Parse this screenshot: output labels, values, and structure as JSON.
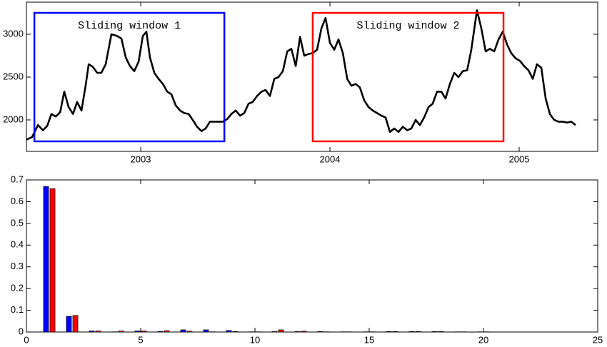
{
  "chart_data": [
    {
      "type": "line",
      "color": "#000000",
      "x": [
        2002.396,
        2002.426,
        2002.457,
        2002.483,
        2002.506,
        2002.528,
        2002.551,
        2002.574,
        2002.596,
        2002.619,
        2002.642,
        2002.664,
        2002.687,
        2002.709,
        2002.725,
        2002.747,
        2002.77,
        2002.792,
        2002.815,
        2002.845,
        2002.875,
        2002.898,
        2002.921,
        2002.943,
        2002.966,
        2002.989,
        2003.011,
        2003.03,
        2003.049,
        2003.072,
        2003.094,
        2003.117,
        2003.14,
        2003.162,
        2003.185,
        2003.208,
        2003.23,
        2003.253,
        2003.275,
        2003.298,
        2003.321,
        2003.343,
        2003.366,
        2003.389,
        2003.411,
        2003.434,
        2003.457,
        2003.479,
        2003.502,
        2003.525,
        2003.547,
        2003.57,
        2003.592,
        2003.615,
        2003.638,
        2003.66,
        2003.683,
        2003.706,
        2003.728,
        2003.751,
        2003.774,
        2003.796,
        2003.819,
        2003.842,
        2003.864,
        2003.887,
        2003.909,
        2003.932,
        2003.955,
        2003.977,
        2004.0,
        2004.023,
        2004.045,
        2004.068,
        2004.091,
        2004.113,
        2004.136,
        2004.158,
        2004.181,
        2004.204,
        2004.226,
        2004.249,
        2004.272,
        2004.294,
        2004.317,
        2004.34,
        2004.362,
        2004.385,
        2004.408,
        2004.43,
        2004.453,
        2004.475,
        2004.498,
        2004.521,
        2004.543,
        2004.566,
        2004.589,
        2004.611,
        2004.634,
        2004.657,
        2004.679,
        2004.702,
        2004.725,
        2004.747,
        2004.777,
        2004.8,
        2004.823,
        2004.845,
        2004.868,
        2004.891,
        2004.913,
        2004.936,
        2004.958,
        2004.981,
        2005.004,
        2005.026,
        2005.049,
        2005.072,
        2005.094,
        2005.117,
        2005.14,
        2005.162,
        2005.185,
        2005.208,
        2005.23,
        2005.253,
        2005.275,
        2005.298
      ],
      "values": [
        1770,
        1800,
        1940,
        1880,
        1930,
        2070,
        2040,
        2090,
        2330,
        2150,
        2070,
        2210,
        2110,
        2400,
        2650,
        2620,
        2550,
        2550,
        2650,
        3000,
        2980,
        2950,
        2730,
        2630,
        2570,
        2680,
        2980,
        3030,
        2730,
        2550,
        2480,
        2420,
        2330,
        2300,
        2170,
        2110,
        2080,
        2070,
        2000,
        1920,
        1870,
        1900,
        1980,
        1980,
        1980,
        1980,
        2010,
        2070,
        2110,
        2050,
        2080,
        2190,
        2210,
        2280,
        2330,
        2350,
        2280,
        2480,
        2500,
        2570,
        2800,
        2830,
        2630,
        2970,
        2750,
        2770,
        2780,
        2820,
        3070,
        3190,
        2900,
        2820,
        2940,
        2780,
        2480,
        2400,
        2420,
        2380,
        2230,
        2150,
        2110,
        2080,
        2050,
        2030,
        1860,
        1900,
        1860,
        1920,
        1880,
        1900,
        2000,
        1940,
        2030,
        2150,
        2190,
        2330,
        2330,
        2250,
        2420,
        2550,
        2500,
        2570,
        2580,
        2820,
        3280,
        3070,
        2800,
        2830,
        2800,
        2940,
        3030,
        2880,
        2780,
        2720,
        2690,
        2630,
        2580,
        2480,
        2650,
        2610,
        2250,
        2070,
        2000,
        1980,
        1980,
        1970,
        1980,
        1940
      ],
      "xlim": [
        2002.396,
        2005.415
      ],
      "ylim": [
        1633,
        3375
      ],
      "xticks": [
        2003,
        2004,
        2005
      ],
      "yticks": [
        2000,
        2500,
        3000
      ],
      "annotations": [
        {
          "text": "Sliding window 1",
          "color": "#0000ff",
          "xrange": [
            2002.438,
            2003.442
          ],
          "yrange": [
            1750,
            3250
          ]
        },
        {
          "text": "Sliding window 2",
          "color": "#ff0000",
          "xrange": [
            2003.909,
            2004.917
          ],
          "yrange": [
            1750,
            3250
          ]
        }
      ]
    },
    {
      "type": "bar",
      "x": [
        1,
        2,
        3,
        4,
        5,
        6,
        7,
        8,
        9,
        10,
        11,
        12,
        13,
        14,
        15,
        16,
        17,
        18,
        19,
        20
      ],
      "series": [
        {
          "color": "#0000ff",
          "values": [
            0.67,
            0.072,
            0.005,
            0.001,
            0.005,
            0.003,
            0.01,
            0.01,
            0.007,
            0.001,
            0.002,
            0.002,
            0.002,
            0.001,
            0.001,
            0.002,
            0.002,
            0.002,
            0.001,
            0.001
          ]
        },
        {
          "color": "#ff0000",
          "values": [
            0.66,
            0.076,
            0.005,
            0.005,
            0.005,
            0.006,
            0.004,
            0.001,
            0.002,
            0.001,
            0.01,
            0.004,
            0.001,
            0.001,
            0.001,
            0.002,
            0.002,
            0.002,
            0.001,
            0.001
          ]
        }
      ],
      "xlim": [
        0,
        25
      ],
      "ylim": [
        0,
        0.7
      ],
      "xticks": [
        0,
        5,
        10,
        15,
        20,
        25
      ],
      "yticks": [
        0,
        0.1,
        0.2,
        0.3,
        0.4,
        0.5,
        0.6,
        0.7
      ]
    }
  ]
}
